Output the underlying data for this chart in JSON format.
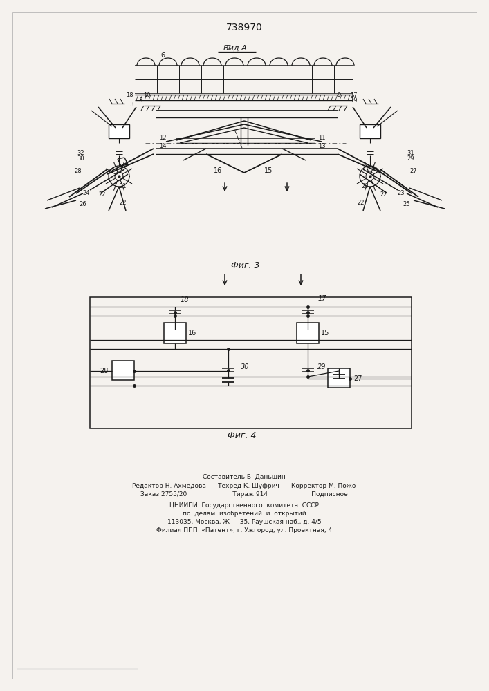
{
  "title": "738970",
  "bg_color": "#f5f2ee",
  "line_color": "#1a1a1a",
  "fig3_label": "Фиг. 3",
  "fig4_label": "Фиг. 4",
  "vid_a_label": "Вид A",
  "footer_line1": "Составитель Б. Даньшин",
  "footer_line2": "Редактор Н. Ахмедова      Техред К. Шуфрич      Корректор М. Пожо",
  "footer_line3": "Заказ 2755/20                       Тираж 914                      Подписное",
  "footer_line4": "ЦНИИПИ  Государственного  комитета  СССР",
  "footer_line5": "по  делам  изобретений  и  открытий",
  "footer_line6": "113035, Москва, Ж — 35, Раушская наб., д. 4/5",
  "footer_line7": "Филиал ППП  «Патент», г. Ужгород, ул. Проектная, 4"
}
